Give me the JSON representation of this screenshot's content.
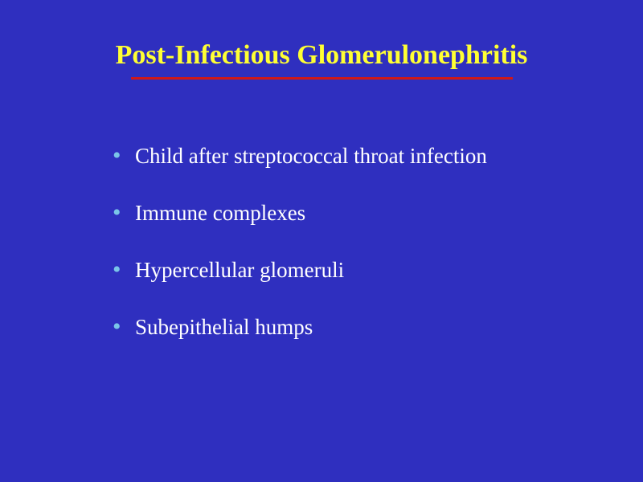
{
  "slide": {
    "title": "Post-Infectious Glomerulonephritis",
    "title_color": "#ffff33",
    "title_fontsize": 34,
    "underline_color": "#d01818",
    "underline_width": 475,
    "background_color": "#2f2fbf",
    "bullet_color": "#7ac5e8",
    "text_color": "#ffffff",
    "bullet_fontsize": 27,
    "bullets": [
      "Child after streptococcal throat infection",
      "Immune complexes",
      "Hypercellular glomeruli",
      "Subepithelial humps"
    ]
  }
}
